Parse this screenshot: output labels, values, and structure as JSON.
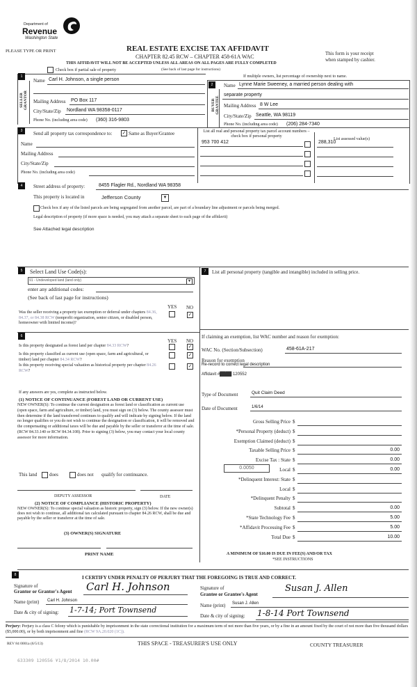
{
  "header": {
    "logo_line1": "Department of",
    "logo_line2": "Revenue",
    "logo_line3": "Washington State",
    "please": "PLEASE TYPE OR PRINT",
    "title": "REAL ESTATE EXCISE TAX AFFIDAVIT",
    "chapter": "CHAPTER 82.45 RCW – CHAPTER 458-61A WAC",
    "warning": "THIS AFFIDAVIT WILL NOT BE ACCEPTED UNLESS ALL AREAS ON ALL PAGES ARE FULLY COMPLETED",
    "see_back": "(See back of last page for instructions)",
    "receipt1": "This form is your receipt",
    "receipt2": "when stamped by cashier.",
    "partial_sale": "Check box if partial sale of property",
    "multiple_owners": "If multiple owners, list percentage of ownership next to name."
  },
  "seller": {
    "badge": "1",
    "side_label": "SELLER GRANTOR",
    "name_label": "Name",
    "name": "Carl H. Johnson, a single person",
    "mail_label": "Mailing Address",
    "mail": "PO Box 117",
    "city_label": "City/State/Zip",
    "city": "Nordland WA 98358-0117",
    "phone_label": "Phone No. (including area code)",
    "phone": "(360) 316-9803"
  },
  "buyer": {
    "badge": "2",
    "side_label": "BUYER GRANTEE",
    "name_label": "Name",
    "name": "Lynne Marie Sweeney, a married person dealing with",
    "name2": "separate property",
    "mail_label": "Mailing Address",
    "mail": "8 W Lee",
    "city_label": "City/State/Zip",
    "city": "Seattle, WA 98119",
    "phone_label": "Phone No. (including area code)",
    "phone": "(206) 284-7340"
  },
  "correspondence": {
    "badge": "3",
    "label": "Send all property tax correspondence to:",
    "same_label": "Same as Buyer/Grantee",
    "same_checked": true,
    "name_label": "Name",
    "mail_label": "Mailing Address",
    "city_label": "City/State/Zip",
    "phone_label": "Phone No. (including area code)"
  },
  "parcels": {
    "header": "List all real and personal property tax parcel account numbers – check box if personal property",
    "assessed_header": "List assessed value(s)",
    "rows": [
      {
        "number": "953 700 412",
        "value": "288,310"
      },
      {
        "number": "",
        "value": ""
      },
      {
        "number": "",
        "value": ""
      },
      {
        "number": "",
        "value": ""
      }
    ]
  },
  "property": {
    "badge": "4",
    "street_label": "Street address of property:",
    "street": "8455 Flagler Rd., Nordland WA 98358",
    "located_label": "This property is located in",
    "county": "Jefferson County",
    "segregated": "Check box if any of the listed parcels are being segregated from another parcel, are part of a boundary line adjustment or parcels being merged.",
    "legal_label": "Legal description of property (if more space is needed, you may attach a separate sheet to each page of the affidavit)",
    "legal": "See Attached legal description"
  },
  "land_use": {
    "badge": "5",
    "label": "Select Land Use Code(s):",
    "selected": "91 - Undeveloped land (land only)",
    "additional": "enter any additional codes:",
    "see_back": "(See back of last page for instructions)",
    "yes": "YES",
    "no": "NO",
    "q_pre": "Was the seller receiving a property tax exemption or deferral under chapters ",
    "q_links": "84.36, 84.37, or 84.38 RCW",
    "q_post": " (nonprofit organization, senior citizen, or disabled person, homeowner with limited income)?",
    "answer": "NO"
  },
  "section6": {
    "badge": "6",
    "yes": "YES",
    "no": "NO",
    "questions": [
      {
        "pre": "Is this property designated as forest land per chapter ",
        "link": "84.33 RCW",
        "post": "?",
        "answer": "NO"
      },
      {
        "pre": "Is this property classified as current use (open space, farm and agricultural, or timber) land per chapter ",
        "link": "84.34 RCW",
        "post": "?",
        "answer": "NO"
      },
      {
        "pre": "Is this property receiving special valuation as historical property per chapter ",
        "link": "84.26 RCW",
        "post": "?",
        "answer": "NO"
      }
    ],
    "if_yes": "If any answers are yes, complete as instructed below.",
    "n1_title": "(1) NOTICE OF CONTINUANCE  (FOREST LAND OR CURRENT USE)",
    "n1_text": "NEW OWNER(S): To continue the current designation as forest land or classification as current use (open space, farm and agriculture, or timber) land, you must sign on (3) below. The county assessor must then determine if the land transferred continues to qualify and will indicate by signing below. If the land no longer qualifies or you do not wish to continue the designation or classification, it will be removed and the compensating or additional taxes will be due and payable by the seller or transferor at the time of sale. (RCW 84.33.140 or RCW 84.34.108). Prior to signing (3) below, you may contact your local county assessor for more information.",
    "this_land": "This land",
    "does": "does",
    "does_not": "does not",
    "qualify": "qualify for continuance.",
    "deputy": "DEPUTY ASSESSOR",
    "date": "DATE",
    "n2_title": "(2) NOTICE OF COMPLIANCE (HISTORIC PROPERTY)",
    "n2_text": "NEW OWNER(S): To continue special valuation as historic property, sign (3) below. If the new owner(s) does not wish to continue, all additional tax calculated pursuant to chapter 84.26 RCW, shall be due and payable by the seller or transferor at the time of sale.",
    "n3_title": "(3)  OWNER(S) SIGNATURE",
    "print_name": "PRINT NAME"
  },
  "section7": {
    "badge": "7",
    "label": "List all  personal property (tangible and intangible) included in selling price."
  },
  "exemption": {
    "claim": "If claiming an exemption, list WAC number and reason for exemption:",
    "wac_label": "WAC No. (Section/Subsection)",
    "wac": "458-61A-217",
    "reason_label": "Reason for exemption",
    "reason": "Re-record to correct legal description",
    "affidavit": "Affidavit #",
    "affidavit_no": "120552",
    "type_label": "Type of Document",
    "type": "Quit Claim Deed",
    "date_label": "Date of Document",
    "date": "1/6/14"
  },
  "tax": {
    "rows": [
      {
        "label": "Gross Selling Price",
        "value": ""
      },
      {
        "label": "*Personal Property (deduct)",
        "value": ""
      },
      {
        "label": "Exemption Claimed (deduct)",
        "value": ""
      },
      {
        "label": "Taxable Selling Price",
        "value": "0.00"
      },
      {
        "label": "Excise Tax : State",
        "value": "0.00"
      },
      {
        "label": "Local",
        "value": "0.00"
      },
      {
        "label": "*Delinquent Interest: State",
        "value": ""
      },
      {
        "label": "Local",
        "value": ""
      },
      {
        "label": "*Delinquent Penalty",
        "value": ""
      },
      {
        "label": "Subtotal",
        "value": "0.00"
      },
      {
        "label": "*State Technology Fee",
        "value": "5.00"
      },
      {
        "label": "*Affidavit Processing Fee",
        "value": "5.00"
      },
      {
        "label": "Total Due",
        "value": "10.00"
      }
    ],
    "local_rate": "0.0050",
    "minimum": "A MINIMUM OF $10.00 IS DUE IN FEE(S) AND/OR TAX",
    "see_instr": "*SEE INSTRUCTIONS"
  },
  "certify": {
    "badge": "8",
    "statement": "I CERTIFY UNDER PENALTY OF PERJURY THAT THE FOREGOING IS TRUE AND CORRECT.",
    "grantor_sig_label1": "Signature of",
    "grantor_sig_label2": "Grantor or Grantor's Agent",
    "grantor_sig": "Carl H. Johnson",
    "grantor_name_label": "Name (print)",
    "grantor_name": "Carl H. Johnson",
    "grantor_date_label": "Date & city of signing:",
    "grantor_date": "1-7-14; Port Townsend",
    "grantee_sig_label1": "Signature of",
    "grantee_sig_label2": "Grantee or Grantee's Agent",
    "grantee_sig": "Susan J. Allen",
    "grantee_name_label": "Name (print)",
    "grantee_name": "Susan J. Allen",
    "grantee_date_label": "Date & city of signing:",
    "grantee_date": "1-8-14 Port Townsend",
    "perjury_label": "Perjury:",
    "perjury_text": "Perjury is a class C felony which is punishable by imprisonment in the state correctional institution for a maximum term of not more than five years, or by a fine in an amount fixed by the court of not more than five thousand dollars ($5,000.00), or by both imprisonment and fine",
    "perjury_ref": "(RCW 9A.20.020 (1C))."
  },
  "footer": {
    "rev": "REV 84 0001a (6/5/13)",
    "treasurer_use": "THIS SPACE - TREASURER'S USE ONLY",
    "county_treasurer": "COUNTY TREASURER",
    "stamp": "633309 120556 ¥1/8/2014 10.00#"
  }
}
